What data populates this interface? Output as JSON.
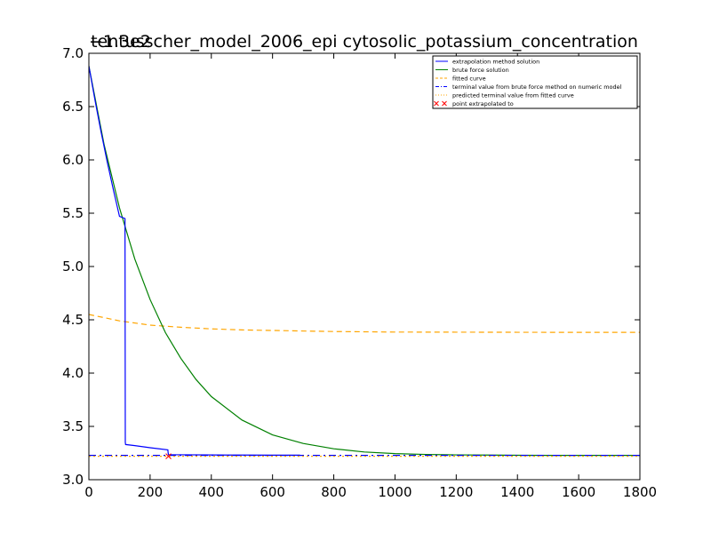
{
  "chart_data": {
    "type": "line",
    "title": "tentusscher_model_2006_epi cytosolic_potassium_concentration",
    "offset_label": "−1.3e2",
    "xlim": [
      0,
      1800
    ],
    "ylim": [
      3.0,
      7.0
    ],
    "xticks": [
      0,
      200,
      400,
      600,
      800,
      1000,
      1200,
      1400,
      1600,
      1800
    ],
    "yticks": [
      3.0,
      3.5,
      4.0,
      4.5,
      5.0,
      5.5,
      6.0,
      6.5,
      7.0
    ],
    "legend_position": "top-right",
    "colors": {
      "extrapolation": "#0000ff",
      "brute_force": "#008000",
      "fitted": "#ffa500",
      "terminal_brute": "#0000ff",
      "terminal_fitted": "#ffa500",
      "point": "#ff0000"
    },
    "series": [
      {
        "name": "extrapolation method solution",
        "x": [
          0,
          20,
          40,
          60,
          80,
          100,
          118,
          119,
          120,
          150,
          200,
          258,
          259,
          260,
          300,
          400,
          500,
          600,
          690
        ],
        "y": [
          6.88,
          6.56,
          6.26,
          5.98,
          5.72,
          5.47,
          5.45,
          3.35,
          3.33,
          3.32,
          3.3,
          3.28,
          3.25,
          3.235,
          3.234,
          3.232,
          3.231,
          3.23,
          3.23
        ]
      },
      {
        "name": "brute force solution",
        "x": [
          0,
          50,
          100,
          150,
          200,
          250,
          300,
          350,
          400,
          500,
          600,
          700,
          800,
          900,
          1000,
          1100,
          1200,
          1300,
          1400,
          1500,
          1600,
          1700,
          1800
        ],
        "y": [
          6.88,
          6.14,
          5.55,
          5.07,
          4.69,
          4.38,
          4.14,
          3.94,
          3.78,
          3.56,
          3.42,
          3.34,
          3.29,
          3.26,
          3.245,
          3.237,
          3.233,
          3.231,
          3.229,
          3.228,
          3.228,
          3.228,
          3.228
        ]
      },
      {
        "name": "fitted curve",
        "x": [
          0,
          100,
          200,
          300,
          400,
          500,
          600,
          800,
          1000,
          1200,
          1400,
          1600,
          1800
        ],
        "y": [
          4.55,
          4.49,
          4.45,
          4.43,
          4.415,
          4.405,
          4.4,
          4.39,
          4.385,
          4.384,
          4.383,
          4.382,
          4.382
        ]
      },
      {
        "name": "terminal value from brute force method on numeric model",
        "y_value": 3.228
      },
      {
        "name": "predicted terminal value from fitted curve",
        "y_value": 3.22
      },
      {
        "name": "point extrapolated to",
        "x": [
          260
        ],
        "y": [
          3.22
        ]
      }
    ]
  }
}
